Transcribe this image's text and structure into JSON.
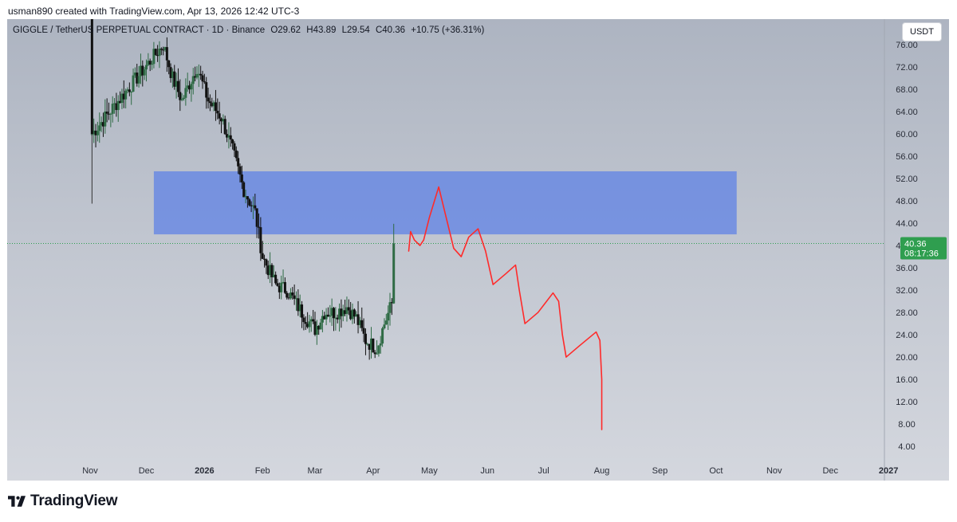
{
  "caption": "usman890 created with TradingView.com, Apr 13, 2026 12:42 UTC-3",
  "symbol": {
    "name": "GIGGLE / TetherUS PERPETUAL CONTRACT · 1D · Binance",
    "open": "O29.62",
    "high": "H43.89",
    "low": "L29.54",
    "close": "C40.36",
    "change": "+10.75 (+36.31%)"
  },
  "currency_button": "USDT",
  "price_label": {
    "price": "40.36",
    "countdown": "08:17:36"
  },
  "brand": "TradingView",
  "colors": {
    "candle_up": "#2f6b45",
    "candle_down": "#111111",
    "zone": "#5b7fe6",
    "projection": "#ff2a2a",
    "last_price": "#2f9e4f"
  },
  "chart_data": {
    "type": "candlestick",
    "title": "GIGGLE / TetherUS PERPETUAL CONTRACT · 1D · Binance",
    "ylim": [
      1,
      80
    ],
    "y_ticks": [
      "4.00",
      "8.00",
      "12.00",
      "16.00",
      "20.00",
      "24.00",
      "28.00",
      "32.00",
      "36.00",
      "40.00",
      "44.00",
      "48.00",
      "52.00",
      "56.00",
      "60.00",
      "64.00",
      "68.00",
      "72.00",
      "76.00"
    ],
    "x_ticks": [
      {
        "label": "Nov",
        "date": "2025-11-01"
      },
      {
        "label": "Dec",
        "date": "2025-12-01"
      },
      {
        "label": "2026",
        "date": "2026-01-01",
        "bold": true
      },
      {
        "label": "Feb",
        "date": "2026-02-01"
      },
      {
        "label": "Mar",
        "date": "2026-03-01"
      },
      {
        "label": "Apr",
        "date": "2026-04-01"
      },
      {
        "label": "May",
        "date": "2026-05-01"
      },
      {
        "label": "Jun",
        "date": "2026-06-01"
      },
      {
        "label": "Jul",
        "date": "2026-07-01"
      },
      {
        "label": "Aug",
        "date": "2026-08-01"
      },
      {
        "label": "Sep",
        "date": "2026-09-01"
      },
      {
        "label": "Oct",
        "date": "2026-10-01"
      },
      {
        "label": "Nov",
        "date": "2026-11-01"
      },
      {
        "label": "Dec",
        "date": "2026-12-01"
      },
      {
        "label": "2027",
        "date": "2027-01-01",
        "bold": true
      }
    ],
    "last_price": 40.36,
    "zone": {
      "from": "2025-12-05",
      "to": "2026-10-12",
      "low": 42.0,
      "high": 53.3
    },
    "anchors": [
      {
        "date": "2025-11-02",
        "close": 60
      },
      {
        "date": "2025-12-10",
        "close": 76
      },
      {
        "date": "2025-12-15",
        "close": 70
      },
      {
        "date": "2025-12-20",
        "close": 66
      },
      {
        "date": "2025-12-28",
        "close": 72
      },
      {
        "date": "2026-01-03",
        "close": 66
      },
      {
        "date": "2026-01-10",
        "close": 63
      },
      {
        "date": "2026-01-16",
        "close": 57
      },
      {
        "date": "2026-01-22",
        "close": 50
      },
      {
        "date": "2026-01-28",
        "close": 46
      },
      {
        "date": "2026-02-01",
        "close": 38
      },
      {
        "date": "2026-02-08",
        "close": 33
      },
      {
        "date": "2026-02-14",
        "close": 32
      },
      {
        "date": "2026-02-22",
        "close": 28
      },
      {
        "date": "2026-03-01",
        "close": 25
      },
      {
        "date": "2026-03-06",
        "close": 28
      },
      {
        "date": "2026-03-12",
        "close": 28
      },
      {
        "date": "2026-03-18",
        "close": 29
      },
      {
        "date": "2026-03-23",
        "close": 27
      },
      {
        "date": "2026-03-28",
        "close": 23
      },
      {
        "date": "2026-04-03",
        "close": 21.5
      },
      {
        "date": "2026-04-07",
        "close": 26
      },
      {
        "date": "2026-04-11",
        "close": 29.6
      },
      {
        "date": "2026-04-12",
        "close": 40.36
      }
    ],
    "projection": [
      {
        "date": "2026-04-20",
        "price": 39
      },
      {
        "date": "2026-04-21",
        "price": 42.5
      },
      {
        "date": "2026-04-23",
        "price": 41
      },
      {
        "date": "2026-04-26",
        "price": 40
      },
      {
        "date": "2026-04-28",
        "price": 41
      },
      {
        "date": "2026-05-01",
        "price": 45
      },
      {
        "date": "2026-05-06",
        "price": 50.5
      },
      {
        "date": "2026-05-10",
        "price": 45
      },
      {
        "date": "2026-05-14",
        "price": 39.5
      },
      {
        "date": "2026-05-18",
        "price": 38
      },
      {
        "date": "2026-05-22",
        "price": 41.5
      },
      {
        "date": "2026-05-27",
        "price": 43
      },
      {
        "date": "2026-05-31",
        "price": 39
      },
      {
        "date": "2026-06-04",
        "price": 33
      },
      {
        "date": "2026-06-11",
        "price": 35
      },
      {
        "date": "2026-06-16",
        "price": 36.5
      },
      {
        "date": "2026-06-18",
        "price": 32
      },
      {
        "date": "2026-06-21",
        "price": 26
      },
      {
        "date": "2026-06-28",
        "price": 28
      },
      {
        "date": "2026-07-06",
        "price": 31.5
      },
      {
        "date": "2026-07-09",
        "price": 30
      },
      {
        "date": "2026-07-11",
        "price": 24
      },
      {
        "date": "2026-07-13",
        "price": 20
      },
      {
        "date": "2026-07-20",
        "price": 22
      },
      {
        "date": "2026-07-29",
        "price": 24.5
      },
      {
        "date": "2026-07-31",
        "price": 23
      },
      {
        "date": "2026-08-01",
        "price": 16
      },
      {
        "date": "2026-08-01",
        "price": 7
      }
    ]
  }
}
